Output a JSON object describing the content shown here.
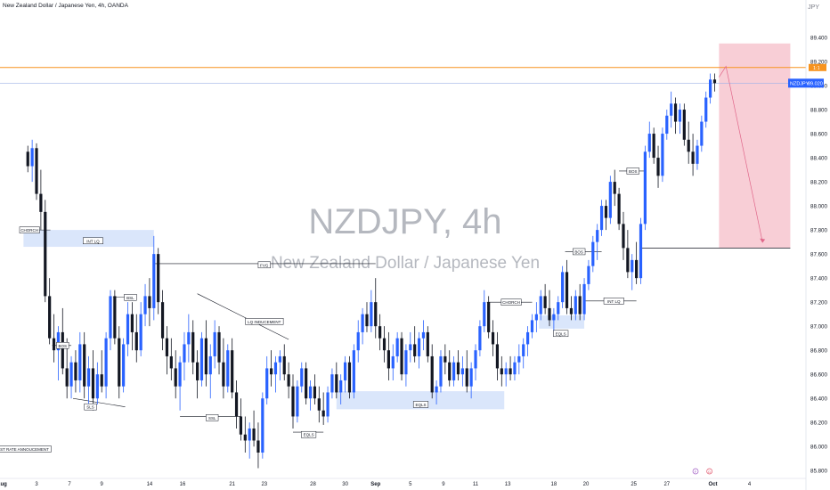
{
  "header": {
    "symbol_description": "New Zealand Dollar / Japanese Yen, 4h, OANDA",
    "currency": "JPY"
  },
  "watermark": {
    "title": "NZDJPY, 4h",
    "subtitle": "New Zealand Dollar / Japanese Yen"
  },
  "colors": {
    "up": "#2962ff",
    "down": "#131722",
    "zone_fill": "#d6e3fb",
    "short_fill": "#f7c6cf",
    "orange_line": "#f7931e",
    "price_badge": "#2962ff",
    "target_line": "#131722",
    "arrow": "#e0678a"
  },
  "price_axis": {
    "ticks": [
      "89.400",
      "89.200",
      "89.000",
      "88.800",
      "88.600",
      "88.400",
      "88.200",
      "88.000",
      "87.800",
      "87.600",
      "87.400",
      "87.200",
      "87.000",
      "86.800",
      "86.600",
      "86.400",
      "86.200",
      "86.000",
      "85.800"
    ],
    "badge_label": "NZDJPY",
    "badge_value": "89.020",
    "orange_badge": "1:1"
  },
  "time_axis": {
    "labels": [
      "Aug",
      "3",
      "7",
      "9",
      "14",
      "16",
      "21",
      "23",
      "28",
      "30",
      "Sep",
      "5",
      "9",
      "11",
      "13",
      "18",
      "20",
      "25",
      "27",
      "Oct",
      "4"
    ],
    "event_marks": [
      "F",
      "D"
    ]
  },
  "chart_data": {
    "type": "candlestick",
    "title": "NZDJPY, 4h",
    "subtitle": "New Zealand Dollar / Japanese Yen",
    "ylim": [
      85.75,
      89.6
    ],
    "x_range": [
      -32,
      895
    ],
    "candles": {
      "fields": [
        "x",
        "open",
        "high",
        "low",
        "close"
      ],
      "rows": [
        [
          0,
          88.45,
          88.5,
          88.28,
          88.33
        ],
        [
          5,
          88.33,
          88.55,
          88.2,
          88.48
        ],
        [
          10,
          88.48,
          88.52,
          88.05,
          88.1
        ],
        [
          15,
          88.1,
          88.3,
          87.8,
          87.95
        ],
        [
          20,
          87.95,
          88.05,
          87.2,
          87.25
        ],
        [
          25,
          87.25,
          87.4,
          86.85,
          86.9
        ],
        [
          30,
          86.9,
          87.1,
          86.7,
          86.8
        ],
        [
          35,
          86.8,
          87.0,
          86.55,
          86.95
        ],
        [
          40,
          86.95,
          87.15,
          86.6,
          86.65
        ],
        [
          45,
          86.65,
          86.9,
          86.4,
          86.5
        ],
        [
          50,
          86.5,
          86.75,
          86.4,
          86.7
        ],
        [
          55,
          86.7,
          86.8,
          86.45,
          86.55
        ],
        [
          60,
          86.55,
          86.95,
          86.45,
          86.85
        ],
        [
          65,
          86.85,
          86.95,
          86.4,
          86.5
        ],
        [
          70,
          86.5,
          86.75,
          86.35,
          86.65
        ],
        [
          75,
          86.65,
          86.8,
          86.3,
          86.4
        ],
        [
          80,
          86.4,
          86.7,
          86.35,
          86.6
        ],
        [
          85,
          86.6,
          86.8,
          86.45,
          86.5
        ],
        [
          90,
          86.5,
          86.95,
          86.4,
          86.9
        ],
        [
          95,
          86.9,
          87.3,
          86.8,
          87.25
        ],
        [
          100,
          87.25,
          87.3,
          86.85,
          86.9
        ],
        [
          105,
          86.9,
          87.0,
          86.4,
          86.5
        ],
        [
          110,
          86.5,
          86.9,
          86.45,
          86.85
        ],
        [
          115,
          86.85,
          87.2,
          86.75,
          87.1
        ],
        [
          120,
          87.1,
          87.2,
          86.8,
          86.95
        ],
        [
          125,
          86.95,
          87.1,
          86.7,
          86.8
        ],
        [
          130,
          86.8,
          87.2,
          86.75,
          87.1
        ],
        [
          135,
          87.1,
          87.35,
          87.0,
          87.25
        ],
        [
          140,
          87.25,
          87.4,
          87.0,
          87.15
        ],
        [
          145,
          87.15,
          87.75,
          87.05,
          87.6
        ],
        [
          150,
          87.6,
          87.65,
          87.1,
          87.2
        ],
        [
          155,
          87.2,
          87.3,
          86.8,
          86.9
        ],
        [
          160,
          86.9,
          87.0,
          86.6,
          86.75
        ],
        [
          165,
          86.75,
          86.9,
          86.55,
          86.65
        ],
        [
          170,
          86.65,
          86.8,
          86.4,
          86.5
        ],
        [
          175,
          86.5,
          86.75,
          86.3,
          86.7
        ],
        [
          180,
          86.7,
          86.95,
          86.55,
          86.85
        ],
        [
          185,
          86.85,
          87.1,
          86.7,
          86.95
        ],
        [
          190,
          86.95,
          87.05,
          86.6,
          86.7
        ],
        [
          195,
          86.7,
          86.8,
          86.4,
          86.55
        ],
        [
          200,
          86.55,
          86.95,
          86.5,
          86.9
        ],
        [
          205,
          86.9,
          87.05,
          86.5,
          86.6
        ],
        [
          210,
          86.6,
          86.85,
          86.4,
          86.75
        ],
        [
          215,
          86.75,
          87.05,
          86.65,
          86.95
        ],
        [
          220,
          86.95,
          87.0,
          86.6,
          86.7
        ],
        [
          225,
          86.7,
          86.9,
          86.4,
          86.5
        ],
        [
          230,
          86.5,
          86.85,
          86.45,
          86.8
        ],
        [
          235,
          86.8,
          86.9,
          86.4,
          86.45
        ],
        [
          240,
          86.45,
          86.55,
          86.15,
          86.25
        ],
        [
          245,
          86.25,
          86.4,
          86.05,
          86.1
        ],
        [
          250,
          86.1,
          86.25,
          85.95,
          86.05
        ],
        [
          255,
          86.05,
          86.2,
          85.9,
          86.15
        ],
        [
          260,
          86.15,
          86.3,
          86.0,
          86.05
        ],
        [
          265,
          86.05,
          86.2,
          85.82,
          85.95
        ],
        [
          270,
          85.95,
          86.45,
          85.9,
          86.4
        ],
        [
          275,
          86.4,
          86.75,
          86.35,
          86.65
        ],
        [
          280,
          86.65,
          86.8,
          86.5,
          86.6
        ],
        [
          285,
          86.6,
          86.75,
          86.45,
          86.7
        ],
        [
          290,
          86.7,
          86.8,
          86.55,
          86.75
        ],
        [
          295,
          86.75,
          86.85,
          86.55,
          86.6
        ],
        [
          300,
          86.6,
          86.7,
          86.4,
          86.5
        ],
        [
          305,
          86.5,
          86.6,
          86.15,
          86.25
        ],
        [
          310,
          86.25,
          86.55,
          86.2,
          86.5
        ],
        [
          315,
          86.5,
          86.7,
          86.45,
          86.65
        ],
        [
          320,
          86.65,
          86.7,
          86.35,
          86.4
        ],
        [
          325,
          86.4,
          86.55,
          86.3,
          86.5
        ],
        [
          330,
          86.5,
          86.6,
          86.35,
          86.4
        ],
        [
          335,
          86.4,
          86.5,
          86.2,
          86.3
        ],
        [
          340,
          86.3,
          86.45,
          86.18,
          86.25
        ],
        [
          345,
          86.25,
          86.5,
          86.2,
          86.45
        ],
        [
          350,
          86.45,
          86.65,
          86.4,
          86.6
        ],
        [
          355,
          86.6,
          86.7,
          86.4,
          86.45
        ],
        [
          360,
          86.45,
          86.6,
          86.35,
          86.55
        ],
        [
          365,
          86.55,
          86.75,
          86.45,
          86.7
        ],
        [
          370,
          86.7,
          86.75,
          86.4,
          86.45
        ],
        [
          375,
          86.45,
          86.85,
          86.4,
          86.8
        ],
        [
          380,
          86.8,
          87.05,
          86.7,
          86.95
        ],
        [
          385,
          86.95,
          87.15,
          86.85,
          87.1
        ],
        [
          390,
          87.1,
          87.2,
          86.95,
          87.0
        ],
        [
          395,
          87.0,
          87.3,
          86.95,
          87.2
        ],
        [
          400,
          87.2,
          87.4,
          86.9,
          87.0
        ],
        [
          405,
          87.0,
          87.1,
          86.8,
          86.9
        ],
        [
          410,
          86.9,
          87.0,
          86.7,
          86.8
        ],
        [
          415,
          86.8,
          86.95,
          86.55,
          86.65
        ],
        [
          420,
          86.65,
          86.85,
          86.55,
          86.75
        ],
        [
          425,
          86.75,
          86.95,
          86.7,
          86.9
        ],
        [
          430,
          86.9,
          86.95,
          86.55,
          86.6
        ],
        [
          435,
          86.6,
          86.85,
          86.5,
          86.8
        ],
        [
          440,
          86.8,
          86.95,
          86.7,
          86.85
        ],
        [
          445,
          86.85,
          87.0,
          86.7,
          86.75
        ],
        [
          450,
          86.75,
          86.95,
          86.65,
          86.9
        ],
        [
          455,
          86.9,
          87.05,
          86.8,
          86.95
        ],
        [
          460,
          86.95,
          87.0,
          86.7,
          86.75
        ],
        [
          465,
          86.75,
          86.85,
          86.4,
          86.45
        ],
        [
          470,
          86.45,
          86.55,
          86.35,
          86.5
        ],
        [
          475,
          86.5,
          86.8,
          86.45,
          86.75
        ],
        [
          480,
          86.75,
          86.85,
          86.6,
          86.7
        ],
        [
          485,
          86.7,
          86.8,
          86.5,
          86.55
        ],
        [
          490,
          86.55,
          86.75,
          86.5,
          86.7
        ],
        [
          495,
          86.7,
          86.8,
          86.55,
          86.6
        ],
        [
          500,
          86.6,
          86.75,
          86.5,
          86.65
        ],
        [
          505,
          86.65,
          86.8,
          86.45,
          86.5
        ],
        [
          510,
          86.5,
          86.7,
          86.4,
          86.65
        ],
        [
          515,
          86.65,
          86.85,
          86.55,
          86.8
        ],
        [
          520,
          86.8,
          87.05,
          86.75,
          87.0
        ],
        [
          525,
          87.0,
          87.3,
          86.95,
          87.2
        ],
        [
          530,
          87.2,
          87.25,
          86.9,
          86.95
        ],
        [
          535,
          86.95,
          87.05,
          86.75,
          86.85
        ],
        [
          540,
          86.85,
          86.95,
          86.55,
          86.65
        ],
        [
          545,
          86.65,
          86.75,
          86.5,
          86.6
        ],
        [
          550,
          86.6,
          86.7,
          86.5,
          86.65
        ],
        [
          555,
          86.65,
          86.75,
          86.55,
          86.6
        ],
        [
          560,
          86.6,
          86.75,
          86.55,
          86.7
        ],
        [
          565,
          86.7,
          86.85,
          86.6,
          86.75
        ],
        [
          570,
          86.75,
          86.9,
          86.65,
          86.85
        ],
        [
          575,
          86.85,
          87.0,
          86.75,
          86.95
        ],
        [
          580,
          86.95,
          87.1,
          86.9,
          87.05
        ],
        [
          585,
          87.05,
          87.2,
          86.95,
          87.1
        ],
        [
          590,
          87.1,
          87.3,
          87.05,
          87.25
        ],
        [
          595,
          87.25,
          87.35,
          87.1,
          87.15
        ],
        [
          600,
          87.15,
          87.3,
          87.0,
          87.05
        ],
        [
          605,
          87.05,
          87.15,
          86.95,
          87.1
        ],
        [
          610,
          87.1,
          87.25,
          87.05,
          87.2
        ],
        [
          615,
          87.2,
          87.5,
          87.15,
          87.45
        ],
        [
          620,
          87.45,
          87.55,
          87.1,
          87.15
        ],
        [
          625,
          87.15,
          87.25,
          87.05,
          87.1
        ],
        [
          630,
          87.1,
          87.3,
          87.05,
          87.25
        ],
        [
          635,
          87.25,
          87.35,
          87.05,
          87.1
        ],
        [
          640,
          87.1,
          87.4,
          87.05,
          87.35
        ],
        [
          645,
          87.35,
          87.55,
          87.3,
          87.5
        ],
        [
          650,
          87.5,
          87.75,
          87.45,
          87.7
        ],
        [
          655,
          87.7,
          87.85,
          87.55,
          87.8
        ],
        [
          660,
          87.8,
          88.05,
          87.75,
          88.0
        ],
        [
          665,
          88.0,
          88.05,
          87.8,
          87.9
        ],
        [
          670,
          87.9,
          88.25,
          87.85,
          88.2
        ],
        [
          675,
          88.2,
          88.3,
          88.0,
          88.1
        ],
        [
          680,
          88.1,
          88.15,
          87.8,
          87.85
        ],
        [
          685,
          87.85,
          87.95,
          87.55,
          87.65
        ],
        [
          690,
          87.65,
          87.8,
          87.4,
          87.45
        ],
        [
          695,
          87.45,
          87.6,
          87.3,
          87.55
        ],
        [
          700,
          87.55,
          87.7,
          87.35,
          87.4
        ],
        [
          705,
          87.4,
          87.9,
          87.35,
          87.85
        ],
        [
          710,
          87.85,
          88.5,
          87.8,
          88.45
        ],
        [
          715,
          88.45,
          88.7,
          88.4,
          88.6
        ],
        [
          720,
          88.6,
          88.65,
          88.35,
          88.4
        ],
        [
          725,
          88.4,
          88.5,
          88.15,
          88.25
        ],
        [
          730,
          88.25,
          88.65,
          88.2,
          88.6
        ],
        [
          735,
          88.6,
          88.8,
          88.55,
          88.75
        ],
        [
          740,
          88.75,
          88.95,
          88.65,
          88.85
        ],
        [
          745,
          88.85,
          88.9,
          88.6,
          88.7
        ],
        [
          750,
          88.7,
          88.85,
          88.6,
          88.8
        ],
        [
          755,
          88.8,
          88.85,
          88.5,
          88.55
        ],
        [
          760,
          88.55,
          88.7,
          88.35,
          88.45
        ],
        [
          765,
          88.45,
          88.6,
          88.25,
          88.35
        ],
        [
          770,
          88.35,
          88.55,
          88.3,
          88.5
        ],
        [
          775,
          88.5,
          88.75,
          88.45,
          88.7
        ],
        [
          780,
          88.7,
          88.95,
          88.65,
          88.9
        ],
        [
          785,
          88.9,
          89.1,
          88.85,
          89.05
        ],
        [
          790,
          89.05,
          89.1,
          88.95,
          89.02
        ]
      ]
    },
    "annotations": [
      {
        "text": "CHORCH",
        "price": 87.8
      },
      {
        "text": "INT LQ",
        "price": 87.71
      },
      {
        "text": "BOS",
        "price": 86.84
      },
      {
        "text": "SLS",
        "price": 86.33
      },
      {
        "text": "BSL",
        "price": 87.24
      },
      {
        "text": "FVG",
        "price": 87.51
      },
      {
        "text": "LQ INDUCEMENT",
        "price": 87.04
      },
      {
        "text": "SSL",
        "price": 86.24
      },
      {
        "text": "EQLS",
        "price": 86.1
      },
      {
        "text": "EQLS",
        "price": 86.35
      },
      {
        "text": "CHORCH",
        "price": 87.2
      },
      {
        "text": "BOS",
        "price": 87.62
      },
      {
        "text": "EQLS",
        "price": 86.94
      },
      {
        "text": "INT LQ",
        "price": 87.21
      },
      {
        "text": "BOS",
        "price": 88.29
      },
      {
        "text": "TEREST RATE ANNOUCEMENT",
        "price": 85.98
      }
    ],
    "zones": [
      {
        "kind": "demand",
        "from_x": -5,
        "to_x": 145,
        "top": 87.8,
        "bottom": 87.66
      },
      {
        "kind": "demand",
        "from_x": 355,
        "to_x": 548,
        "top": 86.46,
        "bottom": 86.31
      },
      {
        "kind": "demand",
        "from_x": 588,
        "to_x": 640,
        "top": 87.09,
        "bottom": 86.98
      },
      {
        "kind": "short_position",
        "from_x": 795,
        "to_x": 877,
        "top": 89.35,
        "bottom": 87.65
      }
    ],
    "levels": [
      {
        "name": "orange",
        "price": 89.15
      },
      {
        "name": "last_price",
        "price": 89.02
      },
      {
        "name": "target",
        "price": 87.65
      }
    ]
  }
}
